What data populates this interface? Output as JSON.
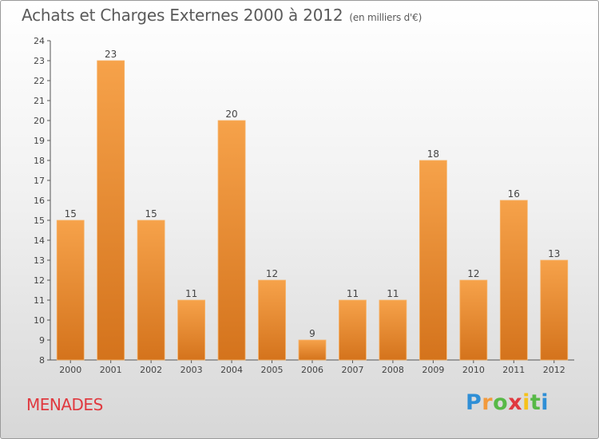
{
  "chart_data": {
    "type": "bar",
    "title": "Achats et Charges Externes 2000 à 2012",
    "unit": "(en milliers d'€)",
    "categories": [
      "2000",
      "2001",
      "2002",
      "2003",
      "2004",
      "2005",
      "2006",
      "2007",
      "2008",
      "2009",
      "2010",
      "2011",
      "2012"
    ],
    "values": [
      15,
      23,
      15,
      11,
      20,
      12,
      9,
      11,
      11,
      18,
      12,
      16,
      13
    ],
    "ylim": [
      8,
      24
    ],
    "yticks": [
      8,
      9,
      10,
      11,
      12,
      13,
      14,
      15,
      16,
      17,
      18,
      19,
      20,
      21,
      22,
      23,
      24
    ],
    "grid": false,
    "bar_color": "#f29a3c",
    "bar_color_dark": "#d9731b"
  },
  "location_name": "MENADES",
  "brand": {
    "letters": [
      "P",
      "r",
      "o",
      "x",
      "i",
      "t",
      "i"
    ],
    "colors": [
      "#2f8fd6",
      "#f29a3c",
      "#57b947",
      "#e0393f",
      "#f6c21a",
      "#57b947",
      "#2f8fd6"
    ]
  }
}
